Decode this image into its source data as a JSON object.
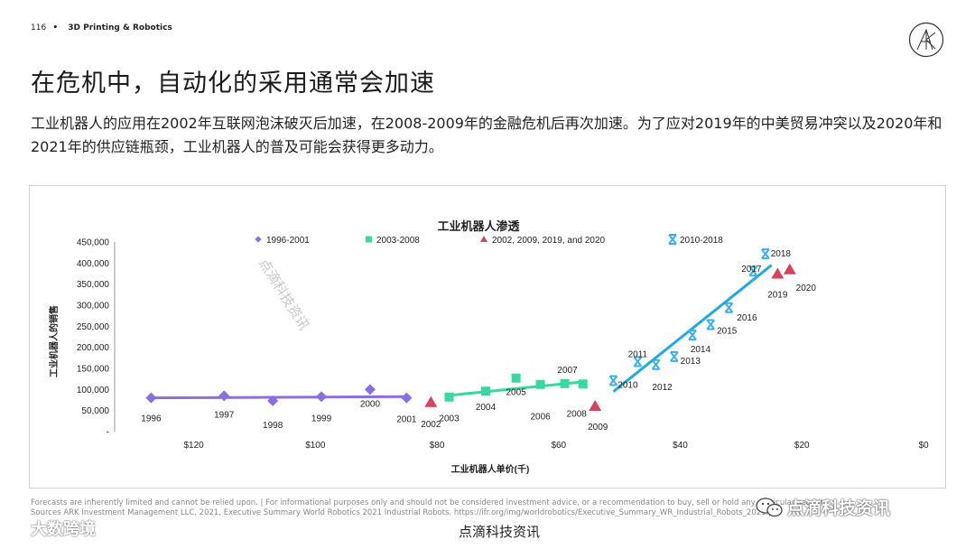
{
  "header": {
    "page_number": "116",
    "bullet": "•",
    "section": "3D Printing & Robotics"
  },
  "headline": "在危机中，自动化的采用通常会加速",
  "subtitle": "工业机器人的应用在2002年互联网泡沫破灭后加速，在2008-2009年的金融危机后再次加速。为了应对2019年的中美贸易冲突以及2020年和2021年的供应链瓶颈，工业机器人的普及可能会获得更多动力。",
  "footer": {
    "line1": "Forecasts are inherently limited and cannot be relied upon. | For informational purposes only and should not be considered investment advice, or a recommendation to buy, sell or hold any particular security.",
    "line2": "Sources ARK Investment Management LLC, 2021, Executive Summary World Robotics 2021 Industrial Robots. https://ifr.org/img/worldrobotics/Executive_Summary_WR_Industrial_Robots_2021.pdf"
  },
  "watermarks": {
    "diagonal": "点滴科技资讯",
    "bottom_center": "点滴科技资讯",
    "bottom_left": "大数跨境",
    "bottom_right": "点滴科技资讯"
  },
  "colors": {
    "series1": "#8a6fe0",
    "series2": "#38d9a1",
    "series3": "#d9425f",
    "series4": "#3bb0e8",
    "trend1": "#8a6fe0",
    "trend2": "#38d9a1",
    "trend3": "#22a9e0"
  },
  "chart_data": {
    "type": "scatter",
    "title": "工业机器人渗透",
    "xlabel": "工业机器人单价(千)",
    "ylabel": "工业机器人的销售",
    "xlim": [
      133,
      0
    ],
    "x_reversed": true,
    "ylim": [
      0,
      450000
    ],
    "x_ticks": [
      "$120",
      "$100",
      "$80",
      "$60",
      "$40",
      "$20",
      "$0"
    ],
    "x_tick_values": [
      120,
      100,
      80,
      60,
      40,
      20,
      0
    ],
    "y_ticks": [
      "450,000",
      "400,000",
      "350,000",
      "300,000",
      "250,000",
      "200,000",
      "150,000",
      "100,000",
      "50,000",
      "-"
    ],
    "y_tick_values": [
      450000,
      400000,
      350000,
      300000,
      250000,
      200000,
      150000,
      100000,
      50000,
      0
    ],
    "legend_placement": "top",
    "series": [
      {
        "name": "1996-2001",
        "marker": "diamond",
        "color_key": "series1",
        "points": [
          {
            "label": "1996",
            "x": 127,
            "y": 80000
          },
          {
            "label": "1997",
            "x": 115,
            "y": 85000
          },
          {
            "label": "1998",
            "x": 107,
            "y": 73000
          },
          {
            "label": "1999",
            "x": 99,
            "y": 83000
          },
          {
            "label": "2000",
            "x": 91,
            "y": 100000
          },
          {
            "label": "2001",
            "x": 85,
            "y": 80000
          }
        ]
      },
      {
        "name": "2003-2008",
        "marker": "square",
        "color_key": "series2",
        "points": [
          {
            "label": "2003",
            "x": 78,
            "y": 82000
          },
          {
            "label": "2004",
            "x": 72,
            "y": 96000
          },
          {
            "label": "2005",
            "x": 67,
            "y": 127000
          },
          {
            "label": "2006",
            "x": 63,
            "y": 112000
          },
          {
            "label": "2007",
            "x": 59,
            "y": 114000
          },
          {
            "label": "2008",
            "x": 56,
            "y": 113000
          }
        ]
      },
      {
        "name": "2002, 2009, 2019, and 2020",
        "marker": "triangle",
        "color_key": "series3",
        "points": [
          {
            "label": "2002",
            "x": 81,
            "y": 69000
          },
          {
            "label": "2009",
            "x": 54,
            "y": 60000
          },
          {
            "label": "2019",
            "x": 24,
            "y": 374000
          },
          {
            "label": "2020",
            "x": 22,
            "y": 384000
          }
        ]
      },
      {
        "name": "2010-2018",
        "marker": "x",
        "color_key": "series4",
        "points": [
          {
            "label": "2010",
            "x": 51,
            "y": 121000
          },
          {
            "label": "2011",
            "x": 47,
            "y": 166000
          },
          {
            "label": "2012",
            "x": 44,
            "y": 159000
          },
          {
            "label": "2013",
            "x": 41,
            "y": 178000
          },
          {
            "label": "2014",
            "x": 38,
            "y": 229000
          },
          {
            "label": "2015",
            "x": 35,
            "y": 254000
          },
          {
            "label": "2016",
            "x": 32,
            "y": 294000
          },
          {
            "label": "2017",
            "x": 28,
            "y": 381000
          },
          {
            "label": "2018",
            "x": 26,
            "y": 422000
          }
        ]
      }
    ],
    "trendlines": [
      {
        "series": "1996-2001",
        "color_key": "trend1",
        "from": [
          127,
          80000
        ],
        "to": [
          85,
          83000
        ]
      },
      {
        "series": "2003-2008",
        "color_key": "trend2",
        "from": [
          78,
          86000
        ],
        "to": [
          56,
          118000
        ]
      },
      {
        "series": "2010-2018",
        "color_key": "trend3",
        "from": [
          51,
          95000
        ],
        "to": [
          25,
          395000
        ]
      }
    ]
  }
}
